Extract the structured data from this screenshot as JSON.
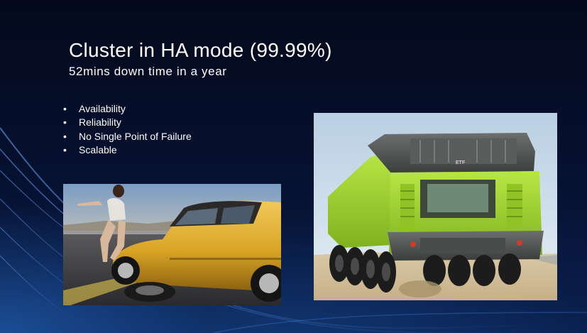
{
  "slide": {
    "title": "Cluster in HA mode (99.99%)",
    "subtitle": "52mins down time in a year",
    "bullets": [
      "Availability",
      "Reliability",
      "No Single Point of Failure",
      "Scalable"
    ]
  },
  "images": {
    "car_photo": "woman changing tire of yellow classic car",
    "truck_photo": "green heavy mining truck rear view",
    "truck_logo_text": "ETF"
  },
  "colors": {
    "background": "#050c1f",
    "accent_blue": "#2a6cc4",
    "text": "#ffffff",
    "car_yellow": "#d9a526",
    "truck_green": "#9ad32a"
  }
}
